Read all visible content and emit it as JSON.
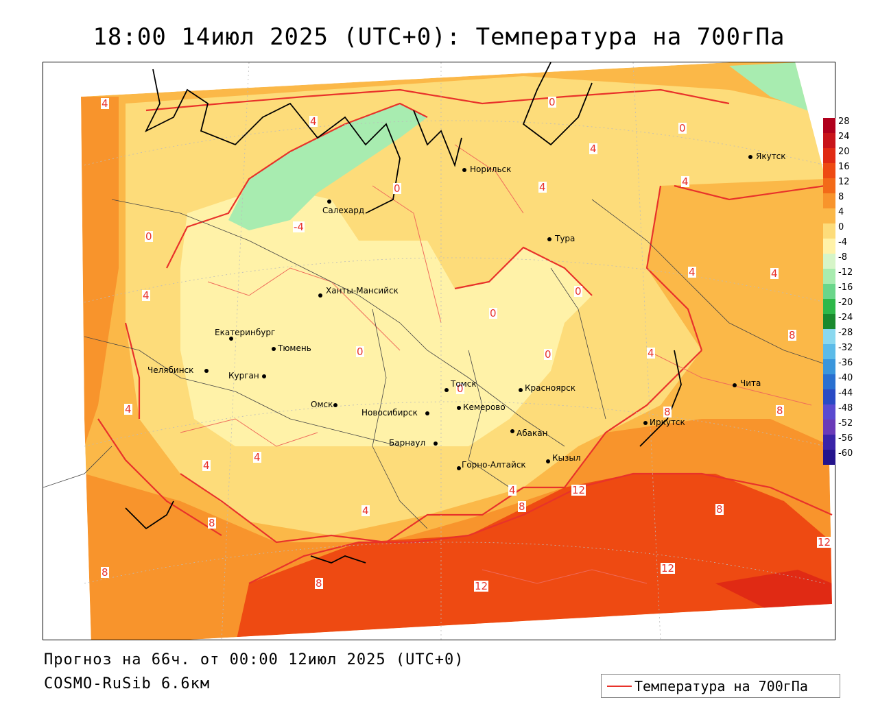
{
  "title": "18:00 14июл 2025 (UTC+0): Температура на 700гПа",
  "forecast_line": "Прогноз на 66ч. от 00:00 12июл 2025 (UTC+0)",
  "model_line": "COSMO-RuSib 6.6км",
  "legend": {
    "label": "Температура на 700гПа",
    "line_color": "#e8322a"
  },
  "colorbar": {
    "labels": [
      "28",
      "24",
      "20",
      "16",
      "12",
      "8",
      "4",
      "0",
      "-4",
      "-8",
      "-12",
      "-16",
      "-20",
      "-24",
      "-28",
      "-32",
      "-36",
      "-40",
      "-44",
      "-48",
      "-52",
      "-56",
      "-60"
    ],
    "colors": [
      "#b0001c",
      "#c8141a",
      "#e02a14",
      "#ee4a12",
      "#f36a18",
      "#f8942c",
      "#fbb848",
      "#fddc7a",
      "#fff2a8",
      "#d6f5c8",
      "#a8ecb0",
      "#6ad68a",
      "#2eb84a",
      "#1a8a2e",
      "#8ad8ef",
      "#5cbbe8",
      "#3a96dc",
      "#2a70d0",
      "#2a4ac4",
      "#5a4ad0",
      "#6a3ab8",
      "#3a24a8",
      "#24148c"
    ]
  },
  "cities": [
    {
      "name": "Норильск"
    },
    {
      "name": "Якутск"
    },
    {
      "name": "Салехард"
    },
    {
      "name": "Тура"
    },
    {
      "name": "Ханты-Мансийск"
    },
    {
      "name": "Екатеринбург"
    },
    {
      "name": "Тюмень"
    },
    {
      "name": "Челябинск"
    },
    {
      "name": "Курган"
    },
    {
      "name": "Омск"
    },
    {
      "name": "Новосибирск"
    },
    {
      "name": "Томск"
    },
    {
      "name": "Красноярск"
    },
    {
      "name": "Кемерово"
    },
    {
      "name": "Барнаул"
    },
    {
      "name": "Абакан"
    },
    {
      "name": "Иркутск"
    },
    {
      "name": "Чита"
    },
    {
      "name": "Кызыл"
    },
    {
      "name": "Горно-Алтайск"
    }
  ],
  "contour_labels": [
    "4",
    "4",
    "0",
    "-4",
    "0",
    "4",
    "0",
    "4",
    "4",
    "0",
    "0",
    "0",
    "4",
    "4",
    "4",
    "4",
    "4",
    "4",
    "4",
    "0",
    "0",
    "8",
    "8",
    "8",
    "8",
    "12",
    "12",
    "12",
    "12",
    "8",
    "8",
    "8",
    "8",
    "4",
    "4",
    "0"
  ]
}
